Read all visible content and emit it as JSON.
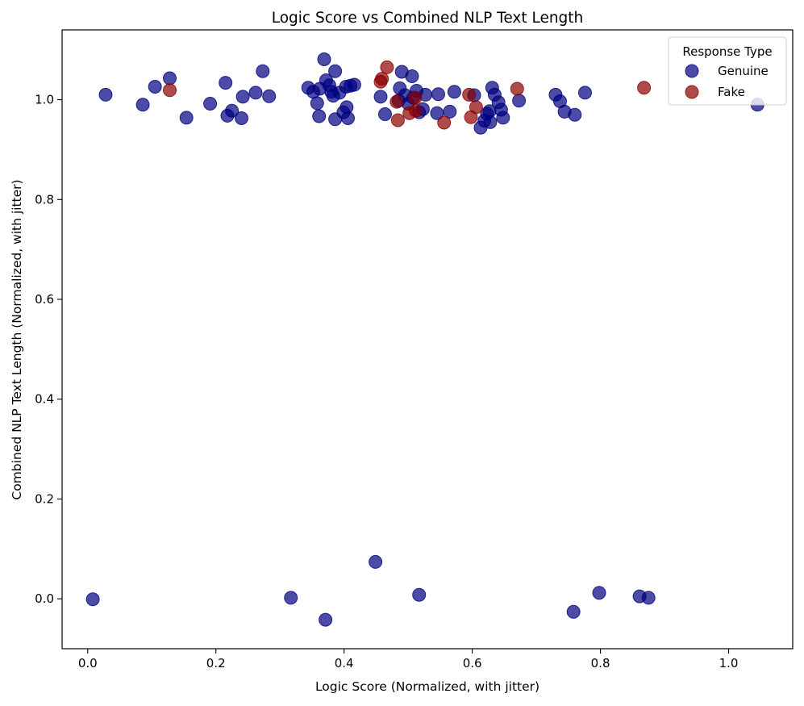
{
  "chart_data": {
    "type": "scatter",
    "title": "Logic Score vs Combined NLP Text Length",
    "xlabel": "Logic Score (Normalized, with jitter)",
    "ylabel": "Combined NLP Text Length (Normalized, with jitter)",
    "xlim": [
      -0.04,
      1.1
    ],
    "ylim": [
      -0.1,
      1.14
    ],
    "xticks": [
      "0.0",
      "0.2",
      "0.4",
      "0.6",
      "0.8",
      "1.0"
    ],
    "xtick_values": [
      0.0,
      0.2,
      0.4,
      0.6,
      0.8,
      1.0
    ],
    "yticks": [
      "0.0",
      "0.2",
      "0.4",
      "0.6",
      "0.8",
      "1.0"
    ],
    "ytick_values": [
      0.0,
      0.2,
      0.4,
      0.6,
      0.8,
      1.0
    ],
    "grid": false,
    "legend": {
      "title": "Response Type",
      "position": "top-right"
    },
    "series": [
      {
        "name": "Genuine",
        "color": "#000080",
        "points": [
          [
            0.028,
            1.01
          ],
          [
            0.086,
            0.99
          ],
          [
            0.105,
            1.026
          ],
          [
            0.128,
            1.043
          ],
          [
            0.154,
            0.964
          ],
          [
            0.191,
            0.992
          ],
          [
            0.215,
            1.034
          ],
          [
            0.218,
            0.968
          ],
          [
            0.225,
            0.978
          ],
          [
            0.24,
            0.963
          ],
          [
            0.242,
            1.006
          ],
          [
            0.262,
            1.014
          ],
          [
            0.273,
            1.057
          ],
          [
            0.283,
            1.007
          ],
          [
            0.344,
            1.024
          ],
          [
            0.352,
            1.016
          ],
          [
            0.358,
            0.993
          ],
          [
            0.362,
            1.022
          ],
          [
            0.369,
            1.081
          ],
          [
            0.372,
            1.039
          ],
          [
            0.377,
            1.029
          ],
          [
            0.38,
            1.016
          ],
          [
            0.383,
            1.008
          ],
          [
            0.386,
            1.057
          ],
          [
            0.386,
            0.961
          ],
          [
            0.393,
            1.014
          ],
          [
            0.399,
            0.975
          ],
          [
            0.403,
            1.026
          ],
          [
            0.404,
            0.985
          ],
          [
            0.406,
            0.963
          ],
          [
            0.41,
            1.028
          ],
          [
            0.416,
            1.03
          ],
          [
            0.361,
            0.967
          ],
          [
            0.457,
            1.006
          ],
          [
            0.464,
            0.971
          ],
          [
            0.485,
            0.998
          ],
          [
            0.487,
            1.023
          ],
          [
            0.49,
            1.056
          ],
          [
            0.495,
            1.009
          ],
          [
            0.5,
            0.992
          ],
          [
            0.506,
            1.047
          ],
          [
            0.508,
            1.004
          ],
          [
            0.513,
            1.018
          ],
          [
            0.517,
            0.975
          ],
          [
            0.523,
            0.981
          ],
          [
            0.527,
            1.01
          ],
          [
            0.545,
            0.973
          ],
          [
            0.547,
            1.011
          ],
          [
            0.565,
            0.976
          ],
          [
            0.572,
            1.016
          ],
          [
            0.603,
            1.009
          ],
          [
            0.613,
            0.944
          ],
          [
            0.619,
            0.958
          ],
          [
            0.623,
            0.972
          ],
          [
            0.627,
            0.977
          ],
          [
            0.628,
            0.955
          ],
          [
            0.631,
            1.024
          ],
          [
            0.635,
            1.01
          ],
          [
            0.641,
            0.995
          ],
          [
            0.645,
            0.98
          ],
          [
            0.648,
            0.964
          ],
          [
            0.673,
            0.998
          ],
          [
            0.73,
            1.01
          ],
          [
            0.737,
            0.997
          ],
          [
            0.744,
            0.976
          ],
          [
            0.76,
            0.97
          ],
          [
            0.776,
            1.014
          ],
          [
            1.045,
            0.99
          ],
          [
            0.008,
            -0.001
          ],
          [
            0.317,
            0.002
          ],
          [
            0.371,
            -0.042
          ],
          [
            0.449,
            0.074
          ],
          [
            0.517,
            0.008
          ],
          [
            0.758,
            -0.026
          ],
          [
            0.798,
            0.012
          ],
          [
            0.861,
            0.005
          ],
          [
            0.875,
            0.002
          ]
        ]
      },
      {
        "name": "Fake",
        "color": "#8b0000",
        "points": [
          [
            0.128,
            1.019
          ],
          [
            0.457,
            1.036
          ],
          [
            0.459,
            1.042
          ],
          [
            0.467,
            1.065
          ],
          [
            0.482,
            0.996
          ],
          [
            0.484,
            0.959
          ],
          [
            0.502,
            0.973
          ],
          [
            0.511,
            1.004
          ],
          [
            0.512,
            0.978
          ],
          [
            0.556,
            0.954
          ],
          [
            0.595,
            1.01
          ],
          [
            0.598,
            0.965
          ],
          [
            0.606,
            0.985
          ],
          [
            0.67,
            1.022
          ],
          [
            0.868,
            1.024
          ]
        ]
      }
    ]
  }
}
